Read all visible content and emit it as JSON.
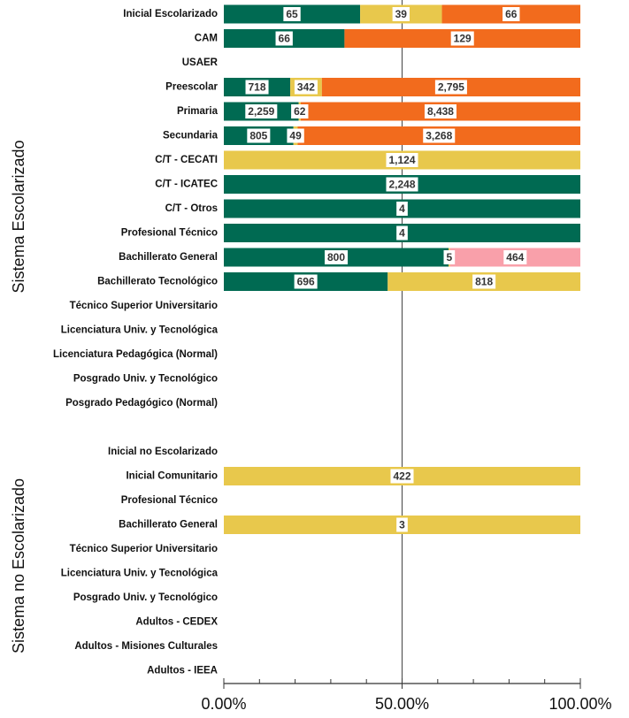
{
  "chart_data": {
    "type": "stacked_bar_100",
    "orientation": "horizontal",
    "group_labels": [
      "Sistema Escolarizado",
      "Sistema no Escolarizado"
    ],
    "categories": [
      "Inicial Escolarizado",
      "CAM",
      "USAER",
      "Preescolar",
      "Primaria",
      "Secundaria",
      "C/T - CECATI",
      "C/T - ICATEC",
      "C/T - Otros",
      "Profesional Técnico",
      "Bachillerato General",
      "Bachillerato Tecnológico",
      "Técnico Superior Universitario",
      "Licenciatura Univ. y Tecnológica",
      "Licenciatura Pedagógica (Normal)",
      "Posgrado Univ. y Tecnológico",
      "Posgrado Pedagógico (Normal)",
      null,
      "Inicial no Escolarizado",
      "Inicial Comunitario",
      "Profesional Técnico",
      "Bachillerato General",
      "Técnico Superior Universitario",
      "Licenciatura Univ. y Tecnológica",
      "Posgrado Univ. y Tecnológico",
      "Adultos - CEDEX",
      "Adultos - Misiones Culturales",
      "Adultos - IEEA"
    ],
    "series": [
      {
        "color": "#006a52",
        "values": [
          65,
          66,
          null,
          718,
          2259,
          805,
          null,
          2248,
          4,
          4,
          800,
          696,
          null,
          null,
          null,
          null,
          null,
          null,
          null,
          null,
          null,
          null,
          null,
          null,
          null,
          null,
          null,
          null
        ],
        "value_labels": [
          "65",
          "66",
          null,
          "718",
          "2,259",
          "805",
          null,
          "2,248",
          "4",
          "4",
          "800",
          "696",
          null,
          null,
          null,
          null,
          null,
          null,
          null,
          null,
          null,
          null,
          null,
          null,
          null,
          null,
          null,
          null
        ]
      },
      {
        "color": "#e8c84c",
        "values": [
          39,
          null,
          null,
          342,
          62,
          49,
          1124,
          null,
          null,
          null,
          5,
          818,
          null,
          null,
          null,
          null,
          null,
          null,
          null,
          422,
          null,
          3,
          null,
          null,
          null,
          null,
          null,
          null
        ],
        "value_labels": [
          "39",
          null,
          null,
          "342",
          "62",
          "49",
          "1,124",
          null,
          null,
          null,
          "5",
          "818",
          null,
          null,
          null,
          null,
          null,
          null,
          null,
          "422",
          null,
          "3",
          null,
          null,
          null,
          null,
          null,
          null
        ]
      },
      {
        "color": "#f26b1d",
        "values": [
          66,
          129,
          null,
          2795,
          8438,
          3268,
          null,
          null,
          null,
          null,
          null,
          null,
          null,
          null,
          null,
          null,
          null,
          null,
          null,
          null,
          null,
          null,
          null,
          null,
          null,
          null,
          null,
          null
        ],
        "value_labels": [
          "66",
          "129",
          null,
          "2,795",
          "8,438",
          "3,268",
          null,
          null,
          null,
          null,
          null,
          null,
          null,
          null,
          null,
          null,
          null,
          null,
          null,
          null,
          null,
          null,
          null,
          null,
          null,
          null,
          null,
          null
        ]
      },
      {
        "color": "#f9a0aa",
        "values": [
          null,
          null,
          null,
          null,
          null,
          null,
          null,
          null,
          null,
          null,
          464,
          null,
          null,
          null,
          null,
          null,
          null,
          null,
          null,
          null,
          null,
          null,
          null,
          null,
          null,
          null,
          null,
          null
        ],
        "value_labels": [
          null,
          null,
          null,
          null,
          null,
          null,
          null,
          null,
          null,
          null,
          "464",
          null,
          null,
          null,
          null,
          null,
          null,
          null,
          null,
          null,
          null,
          null,
          null,
          null,
          null,
          null,
          null,
          null
        ]
      }
    ],
    "xlim": [
      0,
      100
    ],
    "xticks": [
      {
        "value": 0,
        "label": "0.00%"
      },
      {
        "value": 50,
        "label": "50.00%"
      },
      {
        "value": 100,
        "label": "100.00%"
      }
    ],
    "xminor_ticks": [
      10,
      20,
      30,
      40,
      60,
      70,
      80,
      90
    ],
    "grid": true
  }
}
